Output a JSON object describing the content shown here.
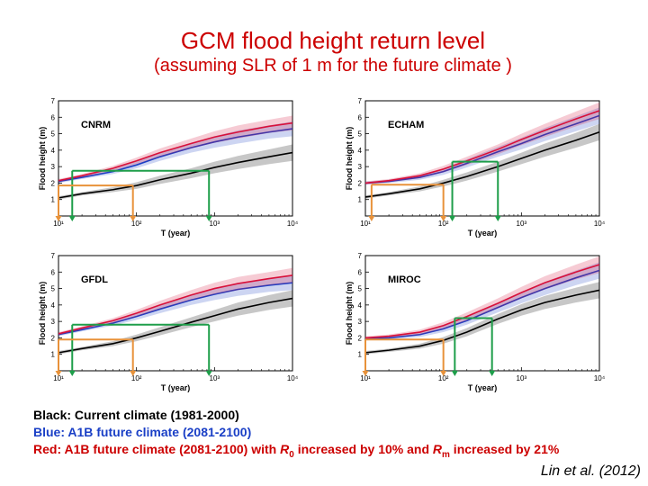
{
  "title": "GCM flood height return level",
  "subtitle": "(assuming SLR of 1 m for the future climate )",
  "legend": {
    "black": "Black: Current climate (1981-2000)",
    "blue": "Blue: A1B future climate (2081-2100)",
    "red_part1": "Red: A1B future climate (2081-2100) with ",
    "red_r": "R",
    "red_sub0": "0",
    "red_part2": " increased by 10% and ",
    "red_rm": "R",
    "red_subm": "m",
    "red_part3": " increased by 21%"
  },
  "citation": "Lin et al. (2012)",
  "colors": {
    "current": "#000000",
    "a1b": "#1a3fc6",
    "a1b_adj": "#d8103a",
    "marker_green": "#1e9e4a",
    "marker_orange": "#e8923a"
  },
  "chart_data": [
    {
      "type": "line",
      "title": "CNRM",
      "xlabel": "T (year)",
      "ylabel": "Flood height (m)",
      "xscale": "log",
      "xlim": [
        10,
        10000
      ],
      "ylim": [
        0,
        7
      ],
      "xticks": [
        10,
        100,
        1000,
        10000
      ],
      "yticks": [
        1,
        2,
        3,
        4,
        5,
        6,
        7
      ],
      "series": [
        {
          "color": "#000000",
          "x": [
            10,
            20,
            50,
            100,
            200,
            500,
            1000,
            2000,
            5000,
            10000
          ],
          "y": [
            1.1,
            1.35,
            1.6,
            1.85,
            2.2,
            2.6,
            2.95,
            3.25,
            3.6,
            3.85
          ],
          "band": [
            0.1,
            0.1,
            0.15,
            0.2,
            0.25,
            0.3,
            0.35,
            0.4,
            0.45,
            0.5
          ]
        },
        {
          "color": "#1a3fc6",
          "x": [
            10,
            20,
            50,
            100,
            200,
            500,
            1000,
            2000,
            5000,
            10000
          ],
          "y": [
            2.1,
            2.35,
            2.7,
            3.1,
            3.6,
            4.15,
            4.5,
            4.8,
            5.1,
            5.3
          ],
          "band": [
            0.1,
            0.1,
            0.15,
            0.2,
            0.25,
            0.3,
            0.35,
            0.4,
            0.4,
            0.45
          ]
        },
        {
          "color": "#d8103a",
          "x": [
            10,
            20,
            50,
            100,
            200,
            500,
            1000,
            2000,
            5000,
            10000
          ],
          "y": [
            2.15,
            2.45,
            2.9,
            3.35,
            3.85,
            4.4,
            4.8,
            5.1,
            5.45,
            5.65
          ],
          "band": [
            0.1,
            0.1,
            0.15,
            0.2,
            0.25,
            0.3,
            0.35,
            0.4,
            0.4,
            0.45
          ]
        }
      ],
      "markers": [
        {
          "color": "green",
          "x1": 15,
          "x2": 850,
          "y": 2.75
        },
        {
          "color": "orange",
          "x1": 10,
          "x2": 90,
          "y": 1.85
        }
      ]
    },
    {
      "type": "line",
      "title": "ECHAM",
      "xlabel": "T (year)",
      "ylabel": "Flood height (m)",
      "xscale": "log",
      "xlim": [
        10,
        10000
      ],
      "ylim": [
        0,
        7
      ],
      "xticks": [
        10,
        100,
        1000,
        10000
      ],
      "yticks": [
        1,
        2,
        3,
        4,
        5,
        6,
        7
      ],
      "series": [
        {
          "color": "#000000",
          "x": [
            10,
            20,
            50,
            100,
            200,
            500,
            1000,
            2000,
            5000,
            10000
          ],
          "y": [
            1.15,
            1.35,
            1.65,
            2.0,
            2.4,
            3.0,
            3.5,
            4.0,
            4.6,
            5.1
          ],
          "band": [
            0.1,
            0.1,
            0.15,
            0.2,
            0.25,
            0.3,
            0.35,
            0.4,
            0.45,
            0.5
          ]
        },
        {
          "color": "#1a3fc6",
          "x": [
            10,
            20,
            50,
            100,
            200,
            500,
            1000,
            2000,
            5000,
            10000
          ],
          "y": [
            2.0,
            2.1,
            2.35,
            2.7,
            3.2,
            3.9,
            4.4,
            4.95,
            5.6,
            6.1
          ],
          "band": [
            0.1,
            0.1,
            0.15,
            0.2,
            0.25,
            0.3,
            0.35,
            0.4,
            0.45,
            0.5
          ]
        },
        {
          "color": "#d8103a",
          "x": [
            10,
            20,
            50,
            100,
            200,
            500,
            1000,
            2000,
            5000,
            10000
          ],
          "y": [
            2.0,
            2.15,
            2.45,
            2.85,
            3.35,
            4.05,
            4.65,
            5.2,
            5.9,
            6.4
          ],
          "band": [
            0.1,
            0.1,
            0.15,
            0.2,
            0.25,
            0.3,
            0.35,
            0.4,
            0.45,
            0.5
          ]
        }
      ],
      "markers": [
        {
          "color": "green",
          "x1": 130,
          "x2": 500,
          "y": 3.3
        },
        {
          "color": "orange",
          "x1": 12,
          "x2": 100,
          "y": 1.9
        }
      ]
    },
    {
      "type": "line",
      "title": "GFDL",
      "xlabel": "T (year)",
      "ylabel": "Flood height (m)",
      "xscale": "log",
      "xlim": [
        10,
        10000
      ],
      "ylim": [
        0,
        7
      ],
      "xticks": [
        10,
        100,
        1000,
        10000
      ],
      "yticks": [
        1,
        2,
        3,
        4,
        5,
        6,
        7
      ],
      "series": [
        {
          "color": "#000000",
          "x": [
            10,
            20,
            50,
            100,
            200,
            500,
            1000,
            2000,
            5000,
            10000
          ],
          "y": [
            1.1,
            1.35,
            1.65,
            2.0,
            2.4,
            2.95,
            3.35,
            3.75,
            4.15,
            4.4
          ],
          "band": [
            0.1,
            0.1,
            0.15,
            0.2,
            0.25,
            0.3,
            0.35,
            0.4,
            0.45,
            0.5
          ]
        },
        {
          "color": "#1a3fc6",
          "x": [
            10,
            20,
            50,
            100,
            200,
            500,
            1000,
            2000,
            5000,
            10000
          ],
          "y": [
            2.2,
            2.5,
            2.9,
            3.3,
            3.75,
            4.3,
            4.65,
            4.95,
            5.2,
            5.35
          ],
          "band": [
            0.1,
            0.1,
            0.15,
            0.2,
            0.25,
            0.3,
            0.35,
            0.4,
            0.4,
            0.45
          ]
        },
        {
          "color": "#d8103a",
          "x": [
            10,
            20,
            50,
            100,
            200,
            500,
            1000,
            2000,
            5000,
            10000
          ],
          "y": [
            2.25,
            2.6,
            3.05,
            3.5,
            4.0,
            4.6,
            5.0,
            5.3,
            5.6,
            5.8
          ],
          "band": [
            0.1,
            0.1,
            0.15,
            0.2,
            0.25,
            0.3,
            0.35,
            0.4,
            0.4,
            0.45
          ]
        }
      ],
      "markers": [
        {
          "color": "green",
          "x1": 15,
          "x2": 850,
          "y": 2.8
        },
        {
          "color": "orange",
          "x1": 10,
          "x2": 90,
          "y": 1.9
        }
      ]
    },
    {
      "type": "line",
      "title": "MIROC",
      "xlabel": "T (year)",
      "ylabel": "Flood height (m)",
      "xscale": "log",
      "xlim": [
        10,
        10000
      ],
      "ylim": [
        0,
        7
      ],
      "xticks": [
        10,
        100,
        1000,
        10000
      ],
      "yticks": [
        1,
        2,
        3,
        4,
        5,
        6,
        7
      ],
      "series": [
        {
          "color": "#000000",
          "x": [
            10,
            20,
            50,
            100,
            200,
            500,
            1000,
            2000,
            5000,
            10000
          ],
          "y": [
            1.1,
            1.25,
            1.5,
            1.85,
            2.35,
            3.15,
            3.7,
            4.15,
            4.6,
            4.9
          ],
          "band": [
            0.1,
            0.1,
            0.15,
            0.2,
            0.25,
            0.3,
            0.35,
            0.4,
            0.45,
            0.5
          ]
        },
        {
          "color": "#1a3fc6",
          "x": [
            10,
            20,
            50,
            100,
            200,
            500,
            1000,
            2000,
            5000,
            10000
          ],
          "y": [
            1.95,
            2.0,
            2.2,
            2.55,
            3.05,
            3.85,
            4.45,
            5.0,
            5.65,
            6.1
          ],
          "band": [
            0.1,
            0.1,
            0.15,
            0.2,
            0.25,
            0.3,
            0.35,
            0.4,
            0.45,
            0.5
          ]
        },
        {
          "color": "#d8103a",
          "x": [
            10,
            20,
            50,
            100,
            200,
            500,
            1000,
            2000,
            5000,
            10000
          ],
          "y": [
            2.0,
            2.1,
            2.35,
            2.75,
            3.3,
            4.1,
            4.75,
            5.35,
            6.0,
            6.45
          ],
          "band": [
            0.1,
            0.1,
            0.15,
            0.2,
            0.25,
            0.3,
            0.35,
            0.4,
            0.45,
            0.5
          ]
        }
      ],
      "markers": [
        {
          "color": "green",
          "x1": 140,
          "x2": 420,
          "y": 3.2
        },
        {
          "color": "orange",
          "x1": 10,
          "x2": 100,
          "y": 1.9
        }
      ]
    }
  ]
}
